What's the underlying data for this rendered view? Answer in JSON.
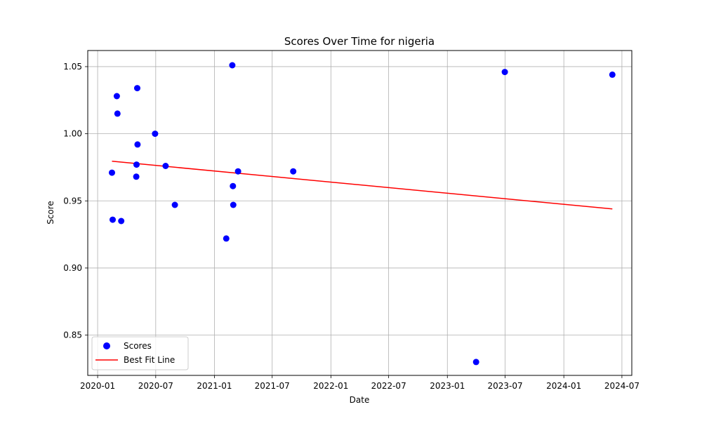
{
  "chart_data": {
    "type": "scatter",
    "title": "Scores Over Time for nigeria",
    "xlabel": "Date",
    "ylabel": "Score",
    "grid": true,
    "legend_position": "bottom-left",
    "xlim": [
      "2019-12-01",
      "2024-08-01"
    ],
    "ylim": [
      0.82,
      1.062
    ],
    "x_ticks": [
      "2020-01",
      "2020-07",
      "2021-01",
      "2021-07",
      "2022-01",
      "2022-07",
      "2023-01",
      "2023-07",
      "2024-01",
      "2024-07"
    ],
    "y_ticks": [
      0.85,
      0.9,
      0.95,
      1.0,
      1.05
    ],
    "y_tick_labels": [
      "0.85",
      "0.90",
      "0.95",
      "1.00",
      "1.05"
    ],
    "series": [
      {
        "name": "Scores",
        "kind": "scatter",
        "color": "#0000ff",
        "points": [
          {
            "date": "2020-02-15",
            "score": 0.971
          },
          {
            "date": "2020-02-17",
            "score": 0.936
          },
          {
            "date": "2020-03-01",
            "score": 1.028
          },
          {
            "date": "2020-03-03",
            "score": 1.015
          },
          {
            "date": "2020-03-15",
            "score": 0.935
          },
          {
            "date": "2020-05-01",
            "score": 0.968
          },
          {
            "date": "2020-05-02",
            "score": 0.977
          },
          {
            "date": "2020-05-04",
            "score": 1.034
          },
          {
            "date": "2020-05-05",
            "score": 0.992
          },
          {
            "date": "2020-06-29",
            "score": 1.0
          },
          {
            "date": "2020-08-01",
            "score": 0.976
          },
          {
            "date": "2020-08-30",
            "score": 0.947
          },
          {
            "date": "2021-02-07",
            "score": 0.922
          },
          {
            "date": "2021-02-26",
            "score": 1.051
          },
          {
            "date": "2021-02-28",
            "score": 0.961
          },
          {
            "date": "2021-03-01",
            "score": 0.947
          },
          {
            "date": "2021-03-16",
            "score": 0.972
          },
          {
            "date": "2021-09-05",
            "score": 0.972
          },
          {
            "date": "2023-04-01",
            "score": 0.83
          },
          {
            "date": "2023-06-30",
            "score": 1.046
          },
          {
            "date": "2024-06-01",
            "score": 1.044
          }
        ]
      },
      {
        "name": "Best Fit Line",
        "kind": "line",
        "color": "#ff0000",
        "points": [
          {
            "date": "2020-02-15",
            "score": 0.9795
          },
          {
            "date": "2024-06-01",
            "score": 0.944
          }
        ]
      }
    ]
  }
}
